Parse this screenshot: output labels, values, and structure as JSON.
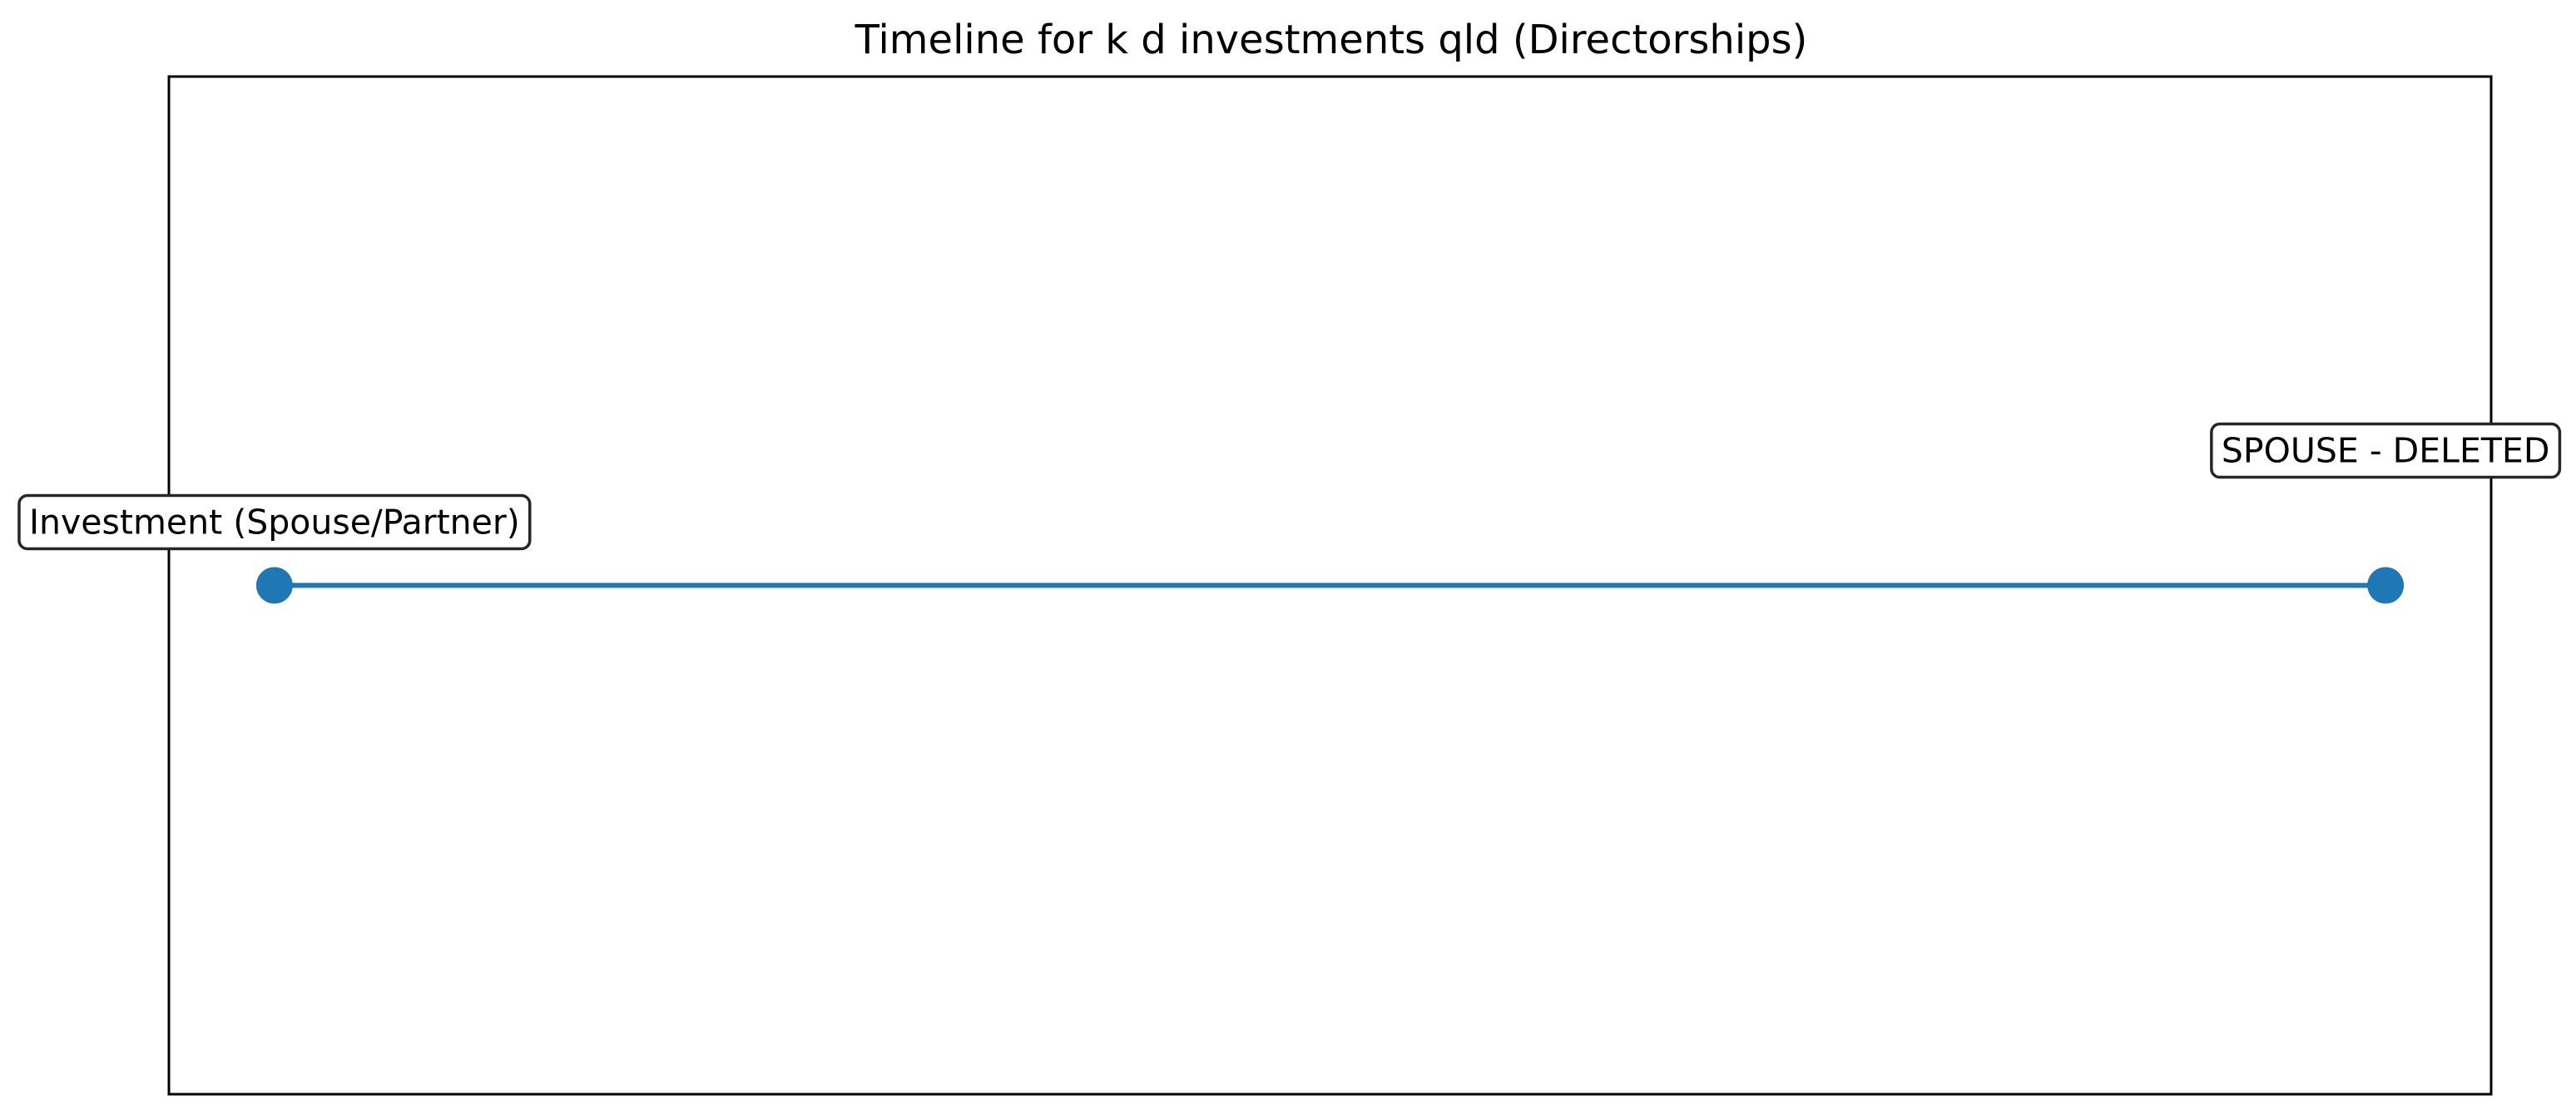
{
  "chart_data": {
    "type": "line",
    "title": "Timeline for k d investments qld (Directorships)",
    "xlabel": "",
    "ylabel": "",
    "xlim": [
      -0.05,
      1.05
    ],
    "ylim": [
      -1,
      1
    ],
    "grid": false,
    "axes_ticks_visible": false,
    "series": [
      {
        "color": "#1f77b4",
        "points": [
          {
            "x": 0,
            "y": 0,
            "label": "Investment (Spouse/Partner)"
          },
          {
            "x": 1,
            "y": 0,
            "label": "SPOUSE - DELETED"
          }
        ]
      }
    ]
  }
}
